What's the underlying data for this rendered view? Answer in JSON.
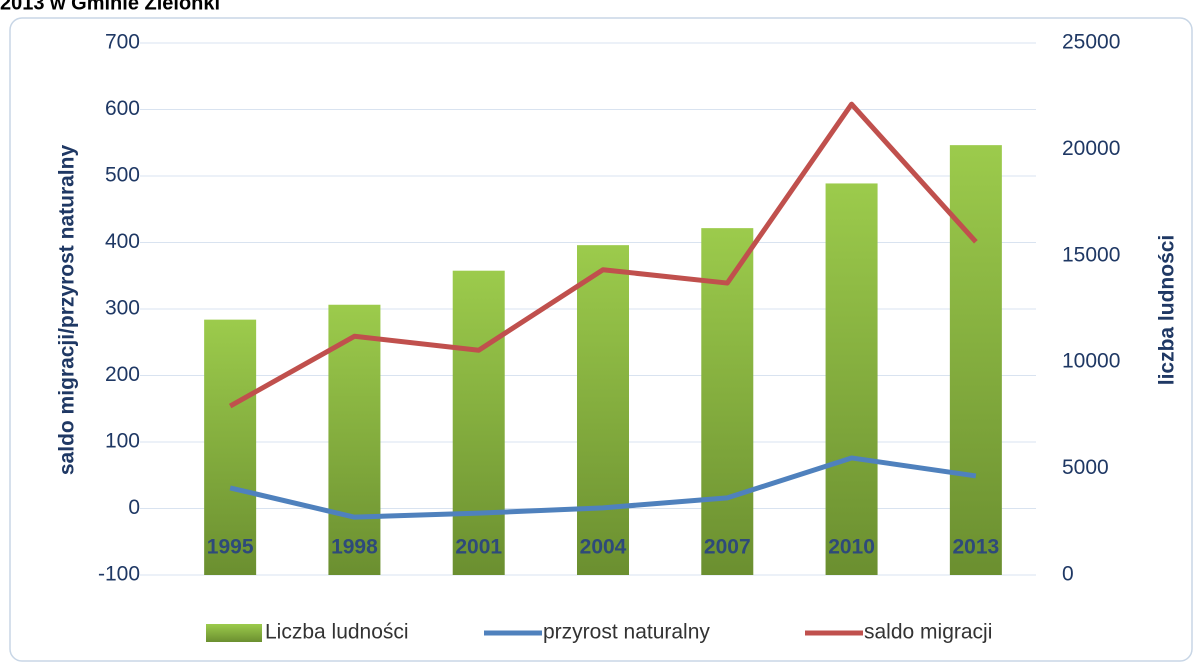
{
  "chart_data": {
    "type": "bar",
    "title": "2013 w Gminie Zielonki",
    "categories": [
      "1995",
      "1998",
      "2001",
      "2004",
      "2007",
      "2010",
      "2013"
    ],
    "series": [
      {
        "name": "Liczba ludności",
        "type": "bar",
        "axis": "y2",
        "color": "#8ab83e",
        "values": [
          12000,
          12700,
          14300,
          15500,
          16300,
          18400,
          20200
        ]
      },
      {
        "name": "przyrost naturalny",
        "type": "line",
        "color": "#4f81bd",
        "values": [
          31,
          -13,
          -7,
          1,
          16,
          76,
          49
        ]
      },
      {
        "name": "saldo migracji",
        "type": "line",
        "color": "#c0504d",
        "values": [
          154,
          259,
          238,
          359,
          339,
          608,
          401
        ]
      }
    ],
    "ylabel": "saldo migracji/przyrost naturalny",
    "y2label": "liczba ludności",
    "ylim": [
      -100,
      700
    ],
    "yticks": [
      -100,
      0,
      100,
      200,
      300,
      400,
      500,
      600,
      700
    ],
    "y2lim": [
      0,
      25000
    ],
    "y2ticks": [
      0,
      5000,
      10000,
      15000,
      20000,
      25000
    ],
    "grid": true,
    "legend": "bottom"
  }
}
